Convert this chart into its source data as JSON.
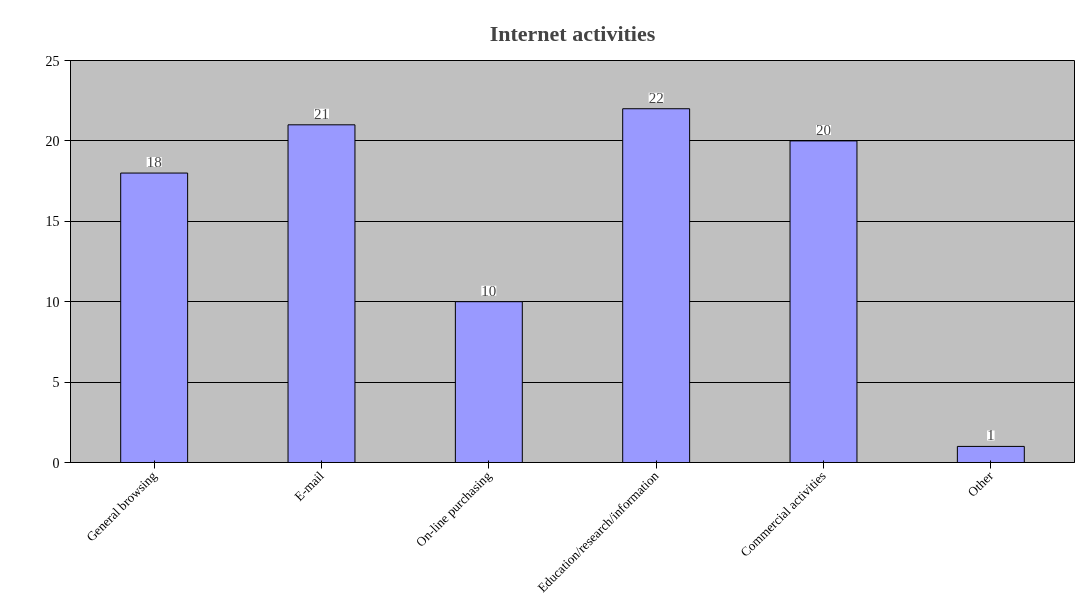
{
  "chart_data": {
    "type": "bar",
    "title": "Internet activities",
    "categories": [
      "General browsing",
      "E-mail",
      "On-line purchasing",
      "Education/research/information",
      "Commercial activities",
      "Other"
    ],
    "values": [
      18,
      21,
      10,
      22,
      20,
      1
    ],
    "color": "#9999ff",
    "ylim": [
      0,
      25
    ],
    "yticks": [
      0,
      5,
      10,
      15,
      20,
      25
    ],
    "grid": "y",
    "data_labels": true
  }
}
